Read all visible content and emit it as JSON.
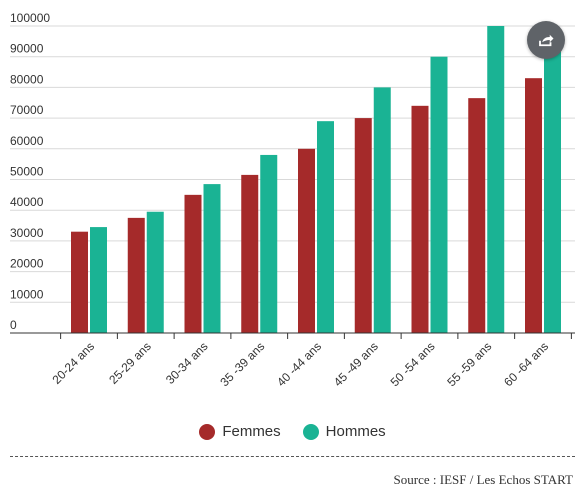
{
  "chart_data": {
    "type": "bar",
    "categories": [
      "20-24 ans",
      "25-29 ans",
      "30-34 ans",
      "35 -39 ans",
      "40 -44 ans",
      "45 -49 ans",
      "50 -54 ans",
      "55 -59 ans",
      "60 -64 ans"
    ],
    "series": [
      {
        "name": "Femmes",
        "color": "#a52a2a",
        "values": [
          33000,
          37500,
          45000,
          51500,
          60000,
          70000,
          74000,
          76500,
          83000
        ]
      },
      {
        "name": "Hommes",
        "color": "#1ab394",
        "values": [
          34500,
          39500,
          48500,
          58000,
          69000,
          80000,
          90000,
          100000,
          95000
        ]
      }
    ],
    "ylim": [
      0,
      100000
    ],
    "yticks": [
      0,
      10000,
      20000,
      30000,
      40000,
      50000,
      60000,
      70000,
      80000,
      90000,
      100000
    ],
    "grid": true,
    "legend_position": "bottom"
  },
  "legend": [
    {
      "label": "Femmes",
      "color": "#a52a2a"
    },
    {
      "label": "Hommes",
      "color": "#1ab394"
    }
  ],
  "source": "Source : IESF / Les Echos START",
  "share_button": {
    "icon": "share-icon"
  }
}
